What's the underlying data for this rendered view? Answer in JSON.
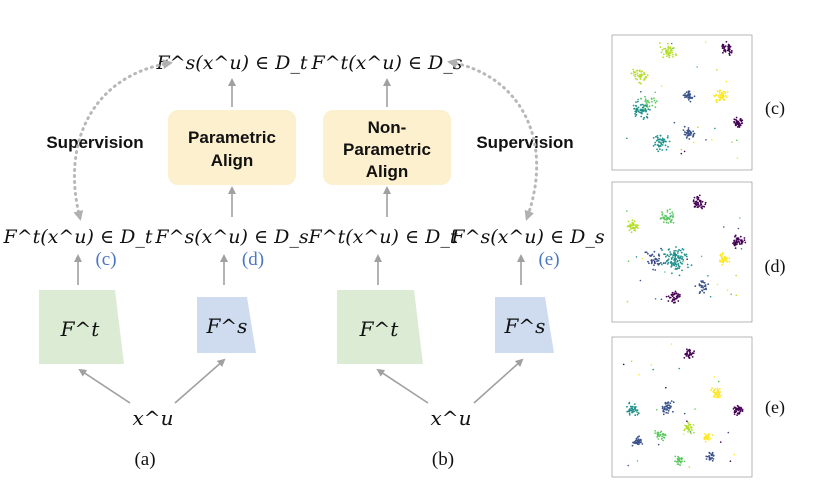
{
  "panel_a": {
    "top_formula": "F^s(x^u) ∈ D_t",
    "align_line1": "Parametric",
    "align_line2": "Align",
    "supervision": "Supervision",
    "teacher_output": "F^t(x^u) ∈ D_t",
    "student_output": "F^s(x^u) ∈ D_s",
    "teacher_ref": "(c)",
    "student_ref": "(d)",
    "teacher_model": "F^t",
    "student_model": "F^s",
    "input": "x^u",
    "caption": "(a)"
  },
  "panel_b": {
    "top_formula": "F^t(x^u) ∈ D_s",
    "align_line1": "Non-",
    "align_line2": "Parametric",
    "align_line3": "Align",
    "supervision": "Supervision",
    "teacher_output": "F^t(x^u) ∈ D_t",
    "student_output": "F^s(x^u) ∈ D_s",
    "student_ref": "(e)",
    "teacher_model": "F^t",
    "student_model": "F^s",
    "input": "x^u",
    "caption": "(b)"
  },
  "plots": {
    "labels": [
      "(c)",
      "(d)",
      "(e)"
    ],
    "cluster_colors": [
      "#440154",
      "#3b528b",
      "#21918c",
      "#5ec962",
      "#b5de2b",
      "#fde725"
    ]
  },
  "colors": {
    "teacher_fill": "#dcebd3",
    "student_fill": "#cfdcf0",
    "align_fill": "#fdf0cf",
    "arrow": "#a0a0a0",
    "ref_text": "#4a78c2"
  }
}
